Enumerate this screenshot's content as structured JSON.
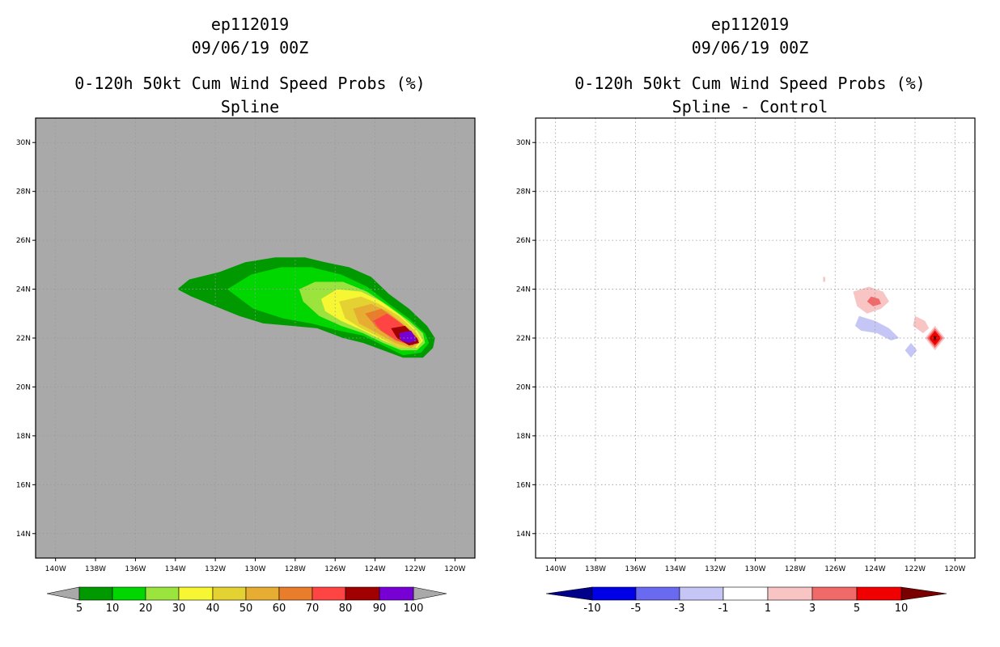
{
  "chart_data": [
    {
      "type": "heatmap",
      "storm_id": "ep112019",
      "datetime": "09/06/19 00Z",
      "title": "0-120h 50kt Cum Wind Speed Probs (%)",
      "subtitle": "Spline",
      "background": "#a9a9a9",
      "lon_ticks": [
        "140W",
        "138W",
        "136W",
        "134W",
        "132W",
        "130W",
        "128W",
        "126W",
        "124W",
        "122W",
        "120W"
      ],
      "lat_ticks": [
        "14N",
        "16N",
        "18N",
        "20N",
        "22N",
        "24N",
        "26N",
        "28N",
        "30N"
      ],
      "xlim": [
        -141,
        -119
      ],
      "ylim": [
        13,
        31
      ],
      "colorbar": {
        "labels": [
          "5",
          "10",
          "20",
          "30",
          "40",
          "50",
          "60",
          "70",
          "80",
          "90",
          "100"
        ],
        "colors": [
          "#009900",
          "#00d700",
          "#9be33d",
          "#f6f632",
          "#e4d233",
          "#e6ad32",
          "#e97d2c",
          "#ff4444",
          "#a00000",
          "#7700d5"
        ],
        "left_arrow": "#a9a9a9",
        "right_arrow": "#a9a9a9"
      },
      "contours": [
        {
          "level": 5,
          "color": "#009900",
          "points": [
            [
              -133.9,
              24.0
            ],
            [
              -133.3,
              24.4
            ],
            [
              -131.8,
              24.7
            ],
            [
              -130.5,
              25.1
            ],
            [
              -129.0,
              25.3
            ],
            [
              -127.5,
              25.3
            ],
            [
              -126.5,
              25.1
            ],
            [
              -125.3,
              24.9
            ],
            [
              -124.2,
              24.5
            ],
            [
              -123.3,
              23.8
            ],
            [
              -122.3,
              23.2
            ],
            [
              -121.4,
              22.5
            ],
            [
              -121.0,
              22.0
            ],
            [
              -121.1,
              21.6
            ],
            [
              -121.6,
              21.2
            ],
            [
              -122.6,
              21.2
            ],
            [
              -123.6,
              21.5
            ],
            [
              -124.6,
              21.8
            ],
            [
              -125.6,
              22.0
            ],
            [
              -126.9,
              22.4
            ],
            [
              -128.2,
              22.5
            ],
            [
              -129.6,
              22.6
            ],
            [
              -130.8,
              22.9
            ],
            [
              -132.0,
              23.3
            ],
            [
              -133.2,
              23.7
            ]
          ]
        },
        {
          "level": 10,
          "color": "#00d700",
          "points": [
            [
              -131.4,
              24.0
            ],
            [
              -130.2,
              24.6
            ],
            [
              -128.7,
              24.9
            ],
            [
              -127.2,
              24.9
            ],
            [
              -125.7,
              24.6
            ],
            [
              -124.4,
              24.1
            ],
            [
              -123.3,
              23.4
            ],
            [
              -122.3,
              22.8
            ],
            [
              -121.5,
              22.2
            ],
            [
              -121.3,
              21.8
            ],
            [
              -121.7,
              21.4
            ],
            [
              -122.6,
              21.3
            ],
            [
              -123.6,
              21.7
            ],
            [
              -124.6,
              22.1
            ],
            [
              -125.8,
              22.3
            ],
            [
              -127.2,
              22.6
            ],
            [
              -128.6,
              22.8
            ],
            [
              -130.1,
              23.2
            ]
          ]
        },
        {
          "level": 20,
          "color": "#9be33d",
          "points": [
            [
              -127.8,
              24.0
            ],
            [
              -127.0,
              24.3
            ],
            [
              -125.6,
              24.3
            ],
            [
              -124.4,
              23.9
            ],
            [
              -123.3,
              23.3
            ],
            [
              -122.3,
              22.7
            ],
            [
              -121.6,
              22.2
            ],
            [
              -121.5,
              21.8
            ],
            [
              -121.9,
              21.5
            ],
            [
              -122.7,
              21.5
            ],
            [
              -123.6,
              21.8
            ],
            [
              -124.6,
              22.2
            ],
            [
              -125.7,
              22.5
            ],
            [
              -126.8,
              22.9
            ],
            [
              -127.6,
              23.5
            ]
          ]
        },
        {
          "level": 30,
          "color": "#f6f632",
          "points": [
            [
              -126.7,
              23.6
            ],
            [
              -125.9,
              24.0
            ],
            [
              -124.7,
              23.9
            ],
            [
              -123.7,
              23.5
            ],
            [
              -122.7,
              22.9
            ],
            [
              -121.9,
              22.3
            ],
            [
              -121.6,
              21.9
            ],
            [
              -121.9,
              21.6
            ],
            [
              -122.7,
              21.6
            ],
            [
              -123.6,
              21.9
            ],
            [
              -124.6,
              22.3
            ],
            [
              -125.7,
              22.7
            ],
            [
              -126.5,
              23.1
            ]
          ]
        },
        {
          "level": 40,
          "color": "#e4d233",
          "points": [
            [
              -125.8,
              23.5
            ],
            [
              -124.7,
              23.7
            ],
            [
              -123.8,
              23.4
            ],
            [
              -122.8,
              22.9
            ],
            [
              -122.0,
              22.3
            ],
            [
              -121.7,
              21.9
            ],
            [
              -122.0,
              21.6
            ],
            [
              -122.8,
              21.6
            ],
            [
              -123.7,
              22.0
            ],
            [
              -124.7,
              22.4
            ],
            [
              -125.5,
              22.8
            ]
          ]
        },
        {
          "level": 50,
          "color": "#e6ad32",
          "points": [
            [
              -125.1,
              23.2
            ],
            [
              -124.2,
              23.4
            ],
            [
              -123.4,
              23.1
            ],
            [
              -122.6,
              22.6
            ],
            [
              -121.9,
              22.1
            ],
            [
              -121.8,
              21.8
            ],
            [
              -122.2,
              21.6
            ],
            [
              -123.0,
              21.8
            ],
            [
              -123.9,
              22.2
            ],
            [
              -124.8,
              22.6
            ]
          ]
        },
        {
          "level": 60,
          "color": "#e97d2c",
          "points": [
            [
              -124.5,
              23.0
            ],
            [
              -123.7,
              23.2
            ],
            [
              -123.0,
              22.8
            ],
            [
              -122.2,
              22.3
            ],
            [
              -121.8,
              21.9
            ],
            [
              -122.2,
              21.7
            ],
            [
              -123.0,
              21.9
            ],
            [
              -123.9,
              22.4
            ]
          ]
        },
        {
          "level": 70,
          "color": "#ff4444",
          "points": [
            [
              -124.1,
              22.7
            ],
            [
              -123.4,
              23.0
            ],
            [
              -122.7,
              22.6
            ],
            [
              -121.9,
              22.0
            ],
            [
              -122.1,
              21.7
            ],
            [
              -122.9,
              21.9
            ],
            [
              -123.7,
              22.3
            ]
          ]
        },
        {
          "level": 80,
          "color": "#a00000",
          "points": [
            [
              -123.2,
              22.4
            ],
            [
              -122.5,
              22.5
            ],
            [
              -121.9,
              22.0
            ],
            [
              -121.8,
              21.8
            ],
            [
              -122.3,
              21.7
            ],
            [
              -122.9,
              22.0
            ]
          ]
        },
        {
          "level": 90,
          "color": "#7700d5",
          "points": [
            [
              -122.8,
              22.2
            ],
            [
              -122.2,
              22.3
            ],
            [
              -121.9,
              21.9
            ],
            [
              -122.3,
              21.8
            ],
            [
              -122.7,
              21.9
            ]
          ]
        }
      ]
    },
    {
      "type": "heatmap",
      "storm_id": "ep112019",
      "datetime": "09/06/19 00Z",
      "title": "0-120h 50kt Cum Wind Speed Probs (%)",
      "subtitle": "Spline - Control",
      "background": "#ffffff",
      "lon_ticks": [
        "140W",
        "138W",
        "136W",
        "134W",
        "132W",
        "130W",
        "128W",
        "126W",
        "124W",
        "122W",
        "120W"
      ],
      "lat_ticks": [
        "14N",
        "16N",
        "18N",
        "20N",
        "22N",
        "24N",
        "26N",
        "28N",
        "30N"
      ],
      "xlim": [
        -141,
        -119
      ],
      "ylim": [
        13,
        31
      ],
      "colorbar": {
        "labels": [
          "-10",
          "-5",
          "-3",
          "-1",
          "1",
          "3",
          "5",
          "10"
        ],
        "colors": [
          "#0000e6",
          "#6a6af0",
          "#c6c6f6",
          "#ffffff",
          "#f8c4c4",
          "#f06a6a",
          "#f00000"
        ],
        "left_arrow": "#00008b",
        "right_arrow": "#7a0000"
      },
      "contours": [
        {
          "level": 1,
          "color": "#f8c4c4",
          "points": [
            [
              -126.6,
              24.5
            ],
            [
              -126.5,
              24.5
            ],
            [
              -126.5,
              24.3
            ],
            [
              -126.6,
              24.3
            ]
          ]
        },
        {
          "level": 1,
          "color": "#f8c4c4",
          "points": [
            [
              -125.1,
              23.9
            ],
            [
              -124.3,
              24.1
            ],
            [
              -123.6,
              23.9
            ],
            [
              -123.3,
              23.5
            ],
            [
              -123.7,
              23.2
            ],
            [
              -124.4,
              23.0
            ],
            [
              -124.9,
              23.3
            ]
          ]
        },
        {
          "level": 3,
          "color": "#f06a6a",
          "points": [
            [
              -124.2,
              23.7
            ],
            [
              -123.8,
              23.6
            ],
            [
              -123.7,
              23.4
            ],
            [
              -124.1,
              23.3
            ],
            [
              -124.4,
              23.5
            ]
          ]
        },
        {
          "level": 1,
          "color": "#f8c4c4",
          "points": [
            [
              -122.0,
              22.9
            ],
            [
              -121.5,
              22.7
            ],
            [
              -121.3,
              22.4
            ],
            [
              -121.6,
              22.2
            ],
            [
              -122.1,
              22.5
            ]
          ]
        },
        {
          "level": 1,
          "color": "#f8c4c4",
          "points": [
            [
              -121.5,
              22.0
            ],
            [
              -121.0,
              22.5
            ],
            [
              -120.5,
              22.0
            ],
            [
              -121.0,
              21.5
            ]
          ]
        },
        {
          "level": 3,
          "color": "#f06a6a",
          "points": [
            [
              -121.4,
              22.0
            ],
            [
              -121.0,
              22.4
            ],
            [
              -120.6,
              22.0
            ],
            [
              -121.0,
              21.6
            ]
          ]
        },
        {
          "level": 5,
          "color": "#f00000",
          "points": [
            [
              -121.3,
              22.0
            ],
            [
              -121.0,
              22.3
            ],
            [
              -120.7,
              22.0
            ],
            [
              -121.0,
              21.7
            ]
          ]
        },
        {
          "level": 10,
          "color": "#7a0000",
          "points": [
            [
              -121.12,
              22.0
            ],
            [
              -121.0,
              22.12
            ],
            [
              -120.88,
              22.0
            ],
            [
              -121.0,
              21.88
            ]
          ]
        },
        {
          "level": -1,
          "color": "#c6c6f6",
          "points": [
            [
              -124.8,
              22.9
            ],
            [
              -124.0,
              22.7
            ],
            [
              -123.3,
              22.4
            ],
            [
              -122.8,
              22.0
            ],
            [
              -123.2,
              21.9
            ],
            [
              -123.9,
              22.2
            ],
            [
              -124.7,
              22.3
            ],
            [
              -125.0,
              22.5
            ]
          ]
        },
        {
          "level": -1,
          "color": "#c6c6f6",
          "points": [
            [
              -122.2,
              21.8
            ],
            [
              -121.9,
              21.5
            ],
            [
              -122.2,
              21.2
            ],
            [
              -122.5,
              21.5
            ]
          ]
        }
      ]
    }
  ]
}
